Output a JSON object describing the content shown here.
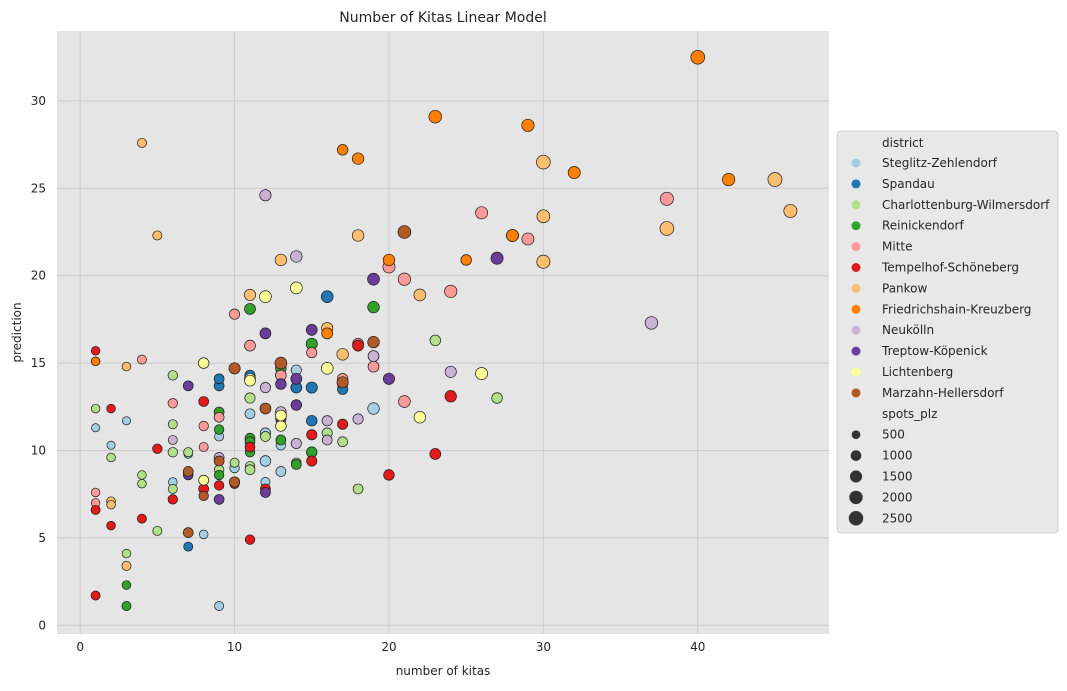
{
  "chart_data": {
    "type": "scatter",
    "title": "Number of Kitas Linear Model",
    "xlabel": "number of kitas",
    "ylabel": "prediction",
    "xlim": [
      -1.5,
      48.5
    ],
    "ylim": [
      -0.5,
      34
    ],
    "xticks": [
      0,
      10,
      20,
      30,
      40
    ],
    "yticks": [
      0,
      5,
      10,
      15,
      20,
      25,
      30
    ],
    "grid": true,
    "background_color": "#e5e5e5",
    "grid_color": "#cccccc",
    "legend": {
      "placement": "right",
      "hue_title": "district",
      "size_title": "spots_plz",
      "size_entries": [
        {
          "label": "500",
          "value": 500
        },
        {
          "label": "1000",
          "value": 1000
        },
        {
          "label": "1500",
          "value": 1500
        },
        {
          "label": "2000",
          "value": 2000
        },
        {
          "label": "2500",
          "value": 2500
        }
      ]
    },
    "series": [
      {
        "name": "Steglitz-Zehlendorf",
        "color": "#a6cee3",
        "points": [
          [
            1,
            11.3,
            400
          ],
          [
            2,
            10.3,
            400
          ],
          [
            3,
            11.7,
            400
          ],
          [
            6,
            8.2,
            500
          ],
          [
            7,
            9.8,
            500
          ],
          [
            8,
            5.2,
            500
          ],
          [
            9,
            10.8,
            600
          ],
          [
            9,
            1.1,
            600
          ],
          [
            10,
            9.0,
            700
          ],
          [
            11,
            12.1,
            800
          ],
          [
            12,
            11.0,
            900
          ],
          [
            12,
            9.4,
            1000
          ],
          [
            12,
            8.2,
            600
          ],
          [
            13,
            8.8,
            800
          ],
          [
            13,
            10.3,
            700
          ],
          [
            14,
            14.6,
            900
          ],
          [
            17,
            13.8,
            900
          ],
          [
            18,
            11.8,
            700
          ],
          [
            19,
            12.4,
            1300
          ]
        ]
      },
      {
        "name": "Spandau",
        "color": "#1f78b4",
        "points": [
          [
            7,
            4.5,
            600
          ],
          [
            9,
            13.7,
            800
          ],
          [
            9,
            14.1,
            800
          ],
          [
            11,
            14.3,
            900
          ],
          [
            13,
            14.3,
            1000
          ],
          [
            14,
            13.6,
            1100
          ],
          [
            15,
            11.7,
            1000
          ],
          [
            15,
            13.6,
            1200
          ],
          [
            16,
            18.8,
            1400
          ],
          [
            17,
            13.5,
            900
          ]
        ]
      },
      {
        "name": "Charlottenburg-Wilmersdorf",
        "color": "#b2df8a",
        "points": [
          [
            1,
            12.4,
            500
          ],
          [
            2,
            9.6,
            500
          ],
          [
            3,
            4.1,
            500
          ],
          [
            4,
            8.1,
            500
          ],
          [
            4,
            8.6,
            500
          ],
          [
            5,
            5.4,
            600
          ],
          [
            6,
            7.8,
            600
          ],
          [
            6,
            9.9,
            700
          ],
          [
            6,
            11.5,
            600
          ],
          [
            6,
            14.3,
            700
          ],
          [
            7,
            9.9,
            600
          ],
          [
            8,
            8.3,
            700
          ],
          [
            9,
            8.9,
            700
          ],
          [
            10,
            9.3,
            600
          ],
          [
            11,
            9.1,
            700
          ],
          [
            11,
            8.9,
            800
          ],
          [
            11,
            13.0,
            900
          ],
          [
            12,
            10.8,
            800
          ],
          [
            14,
            9.3,
            700
          ],
          [
            16,
            11.0,
            900
          ],
          [
            17,
            10.5,
            800
          ],
          [
            18,
            7.8,
            800
          ],
          [
            23,
            16.3,
            1000
          ],
          [
            27,
            13.0,
            1000
          ]
        ]
      },
      {
        "name": "Reinickendorf",
        "color": "#33a02c",
        "points": [
          [
            3,
            2.3,
            500
          ],
          [
            3,
            1.1,
            600
          ],
          [
            9,
            12.2,
            800
          ],
          [
            9,
            11.2,
            700
          ],
          [
            9,
            8.6,
            700
          ],
          [
            11,
            10.7,
            800
          ],
          [
            11,
            10.5,
            800
          ],
          [
            11,
            9.9,
            700
          ],
          [
            11,
            18.1,
            1100
          ],
          [
            13,
            14.7,
            1000
          ],
          [
            13,
            10.6,
            800
          ],
          [
            14,
            9.2,
            800
          ],
          [
            15,
            9.9,
            1000
          ],
          [
            15,
            16.1,
            1200
          ],
          [
            19,
            18.2,
            1300
          ]
        ]
      },
      {
        "name": "Mitte",
        "color": "#fb9a99",
        "points": [
          [
            1,
            7.6,
            500
          ],
          [
            1,
            7.0,
            500
          ],
          [
            4,
            15.2,
            600
          ],
          [
            6,
            12.7,
            700
          ],
          [
            8,
            11.4,
            700
          ],
          [
            8,
            10.2,
            600
          ],
          [
            9,
            11.9,
            800
          ],
          [
            10,
            17.8,
            900
          ],
          [
            11,
            16.0,
            1100
          ],
          [
            13,
            14.3,
            1000
          ],
          [
            15,
            15.6,
            900
          ],
          [
            17,
            14.1,
            1000
          ],
          [
            18,
            16.1,
            1100
          ],
          [
            19,
            14.8,
            1100
          ],
          [
            20,
            20.5,
            1500
          ],
          [
            21,
            12.8,
            1400
          ],
          [
            21,
            19.8,
            1600
          ],
          [
            24,
            19.1,
            1600
          ],
          [
            26,
            23.6,
            1500
          ],
          [
            29,
            22.1,
            1500
          ],
          [
            38,
            24.4,
            1900
          ]
        ]
      },
      {
        "name": "Tempelhof-Schöneberg",
        "color": "#e31a1c",
        "points": [
          [
            1,
            15.7,
            500
          ],
          [
            1,
            6.6,
            600
          ],
          [
            1,
            1.7,
            600
          ],
          [
            2,
            12.4,
            500
          ],
          [
            2,
            5.7,
            500
          ],
          [
            4,
            6.1,
            600
          ],
          [
            5,
            10.1,
            700
          ],
          [
            6,
            7.2,
            700
          ],
          [
            8,
            7.8,
            800
          ],
          [
            8,
            12.8,
            800
          ],
          [
            9,
            8.0,
            700
          ],
          [
            10,
            8.1,
            700
          ],
          [
            11,
            10.2,
            800
          ],
          [
            11,
            4.9,
            700
          ],
          [
            12,
            7.8,
            800
          ],
          [
            15,
            10.9,
            900
          ],
          [
            15,
            9.4,
            900
          ],
          [
            17,
            11.5,
            900
          ],
          [
            18,
            16.0,
            1100
          ],
          [
            20,
            8.6,
            1000
          ],
          [
            23,
            9.8,
            1100
          ],
          [
            24,
            13.1,
            1300
          ]
        ]
      },
      {
        "name": "Pankow",
        "color": "#fdbf6f",
        "points": [
          [
            1,
            15.1,
            500
          ],
          [
            2,
            7.1,
            500
          ],
          [
            2,
            6.9,
            500
          ],
          [
            3,
            14.8,
            500
          ],
          [
            3,
            3.4,
            600
          ],
          [
            4,
            27.6,
            600
          ],
          [
            5,
            22.3,
            600
          ],
          [
            11,
            18.9,
            1200
          ],
          [
            13,
            20.9,
            1300
          ],
          [
            16,
            17.0,
            1200
          ],
          [
            17,
            15.5,
            1300
          ],
          [
            18,
            22.3,
            1300
          ],
          [
            22,
            18.9,
            1400
          ],
          [
            28,
            22.3,
            1500
          ],
          [
            30,
            26.5,
            2200
          ],
          [
            30,
            23.4,
            1800
          ],
          [
            30,
            20.8,
            1900
          ],
          [
            38,
            22.7,
            2200
          ],
          [
            45,
            25.5,
            2300
          ],
          [
            46,
            23.7,
            1900
          ]
        ]
      },
      {
        "name": "Friedrichshain-Kreuzberg",
        "color": "#ff7f00",
        "points": [
          [
            1,
            15.1,
            500
          ],
          [
            16,
            16.7,
            1100
          ],
          [
            17,
            27.2,
            1000
          ],
          [
            18,
            26.7,
            1300
          ],
          [
            20,
            20.9,
            1300
          ],
          [
            23,
            29.1,
            1700
          ],
          [
            25,
            20.9,
            1000
          ],
          [
            28,
            22.3,
            1400
          ],
          [
            29,
            28.6,
            1600
          ],
          [
            32,
            25.9,
            1500
          ],
          [
            40,
            32.5,
            2200
          ],
          [
            42,
            25.5,
            1600
          ]
        ]
      },
      {
        "name": "Neukölln",
        "color": "#cab2d6",
        "points": [
          [
            6,
            10.6,
            600
          ],
          [
            7,
            8.6,
            700
          ],
          [
            9,
            9.6,
            800
          ],
          [
            12,
            13.6,
            900
          ],
          [
            12,
            24.6,
            1200
          ],
          [
            13,
            12.2,
            1000
          ],
          [
            14,
            10.4,
            900
          ],
          [
            14,
            21.1,
            1300
          ],
          [
            16,
            10.6,
            800
          ],
          [
            16,
            11.7,
            900
          ],
          [
            18,
            11.8,
            900
          ],
          [
            19,
            15.4,
            1100
          ],
          [
            24,
            14.5,
            1200
          ],
          [
            37,
            17.3,
            1700
          ]
        ]
      },
      {
        "name": "Treptow-Köpenick",
        "color": "#6a3d9a",
        "points": [
          [
            7,
            13.7,
            800
          ],
          [
            7,
            8.6,
            700
          ],
          [
            9,
            7.2,
            800
          ],
          [
            12,
            16.7,
            1100
          ],
          [
            12,
            7.6,
            800
          ],
          [
            13,
            11.8,
            900
          ],
          [
            13,
            13.8,
            1000
          ],
          [
            14,
            12.6,
            1000
          ],
          [
            14,
            14.1,
            1100
          ],
          [
            15,
            16.9,
            1100
          ],
          [
            19,
            19.8,
            1400
          ],
          [
            20,
            14.1,
            1200
          ],
          [
            27,
            21.0,
            1500
          ]
        ]
      },
      {
        "name": "Lichtenberg",
        "color": "#ffff99",
        "points": [
          [
            8,
            8.3,
            800
          ],
          [
            8,
            15.0,
            1000
          ],
          [
            11,
            14.1,
            1100
          ],
          [
            11,
            14.0,
            1100
          ],
          [
            12,
            18.8,
            1400
          ],
          [
            13,
            11.4,
            1000
          ],
          [
            13,
            12.0,
            1100
          ],
          [
            14,
            19.3,
            1400
          ],
          [
            16,
            14.7,
            1400
          ],
          [
            22,
            11.9,
            1300
          ],
          [
            26,
            14.4,
            1500
          ]
        ]
      },
      {
        "name": "Marzahn-Hellersdorf",
        "color": "#b15928",
        "points": [
          [
            7,
            5.3,
            800
          ],
          [
            7,
            8.8,
            800
          ],
          [
            8,
            7.4,
            700
          ],
          [
            9,
            9.4,
            800
          ],
          [
            10,
            14.7,
            1200
          ],
          [
            10,
            8.2,
            900
          ],
          [
            12,
            12.4,
            1100
          ],
          [
            13,
            15.0,
            1400
          ],
          [
            17,
            13.9,
            1200
          ],
          [
            19,
            16.2,
            1300
          ],
          [
            21,
            22.5,
            1800
          ]
        ]
      }
    ]
  }
}
